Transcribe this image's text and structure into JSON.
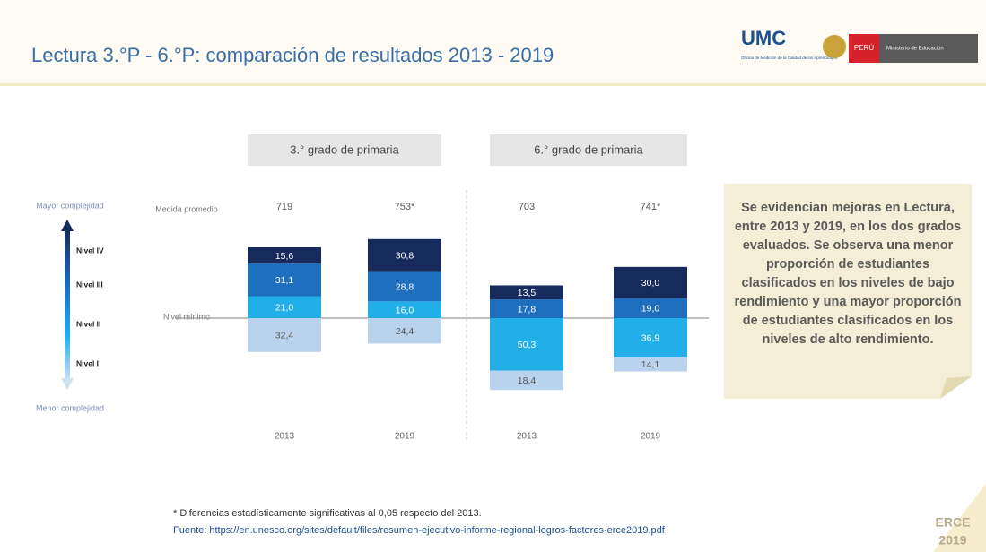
{
  "header": {
    "title": "Lectura 3.°P - 6.°P: comparación de resultados 2013 - 2019",
    "logo": "UMC",
    "logo_subtitle": "Oficina de Medición de la Calidad de los Aprendizajes",
    "country": "PERÚ",
    "ministry": "Ministerio de Educación"
  },
  "scale_labels": {
    "top": "Mayor complejidad",
    "bottom": "Menor complejidad",
    "mean": "Medida promedio",
    "minimum": "Nivel mínimo"
  },
  "chart_data": [
    {
      "type": "bar",
      "title": "3.° grado de primaria",
      "categories": [
        "2013",
        "2019"
      ],
      "ylim": [
        -90,
        90
      ],
      "below_minimum": 1,
      "mean": {
        "values": [
          719,
          753
        ],
        "value_labels": [
          "719",
          "753*"
        ]
      },
      "series": [
        {
          "name": "Nivel I",
          "color": "#b9d3ee",
          "values": [
            32.4,
            24.4
          ],
          "value_labels": [
            "32,4",
            "24,4"
          ]
        },
        {
          "name": "Nivel II",
          "color": "#22aee6",
          "values": [
            21.0,
            16.0
          ],
          "value_labels": [
            "21,0",
            "16,0"
          ]
        },
        {
          "name": "Nivel III",
          "color": "#1f6fbf",
          "values": [
            31.1,
            28.8
          ],
          "value_labels": [
            "31,1",
            "28,8"
          ]
        },
        {
          "name": "Nivel IV",
          "color": "#172a5c",
          "values": [
            15.6,
            30.8
          ],
          "value_labels": [
            "15,6",
            "30,8"
          ]
        }
      ]
    },
    {
      "type": "bar",
      "title": "6.° grado de primaria",
      "categories": [
        "2013",
        "2019"
      ],
      "ylim": [
        -90,
        90
      ],
      "below_minimum": 2,
      "mean": {
        "values": [
          703,
          741
        ],
        "value_labels": [
          "703",
          "741*"
        ]
      },
      "series": [
        {
          "name": "Nivel I",
          "color": "#b9d3ee",
          "values": [
            18.4,
            14.1
          ],
          "value_labels": [
            "18,4",
            "14,1"
          ]
        },
        {
          "name": "Nivel II",
          "color": "#22aee6",
          "values": [
            50.3,
            36.9
          ],
          "value_labels": [
            "50,3",
            "36,9"
          ]
        },
        {
          "name": "Nivel III",
          "color": "#1f6fbf",
          "values": [
            17.8,
            19.0
          ],
          "value_labels": [
            "17,8",
            "19,0"
          ]
        },
        {
          "name": "Nivel IV",
          "color": "#172a5c",
          "values": [
            13.5,
            30.0
          ],
          "value_labels": [
            "13,5",
            "30,0"
          ]
        }
      ]
    }
  ],
  "note": "Se evidencian mejoras en Lectura, entre 2013 y 2019, en los dos grados evaluados. Se observa una menor proporción de estudiantes clasificados en los niveles de bajo rendimiento y una mayor proporción de estudiantes clasificados en los niveles de alto rendimiento.",
  "footnotes": [
    "* Diferencias estadísticamente significativas al 0,05 respecto del 2013.",
    "Fuente: https://en.unesco.org/sites/default/files/resumen-ejecutivo-informe-regional-logros-factores-erce2019.pdf"
  ],
  "corner": [
    "ERCE",
    "2019"
  ]
}
